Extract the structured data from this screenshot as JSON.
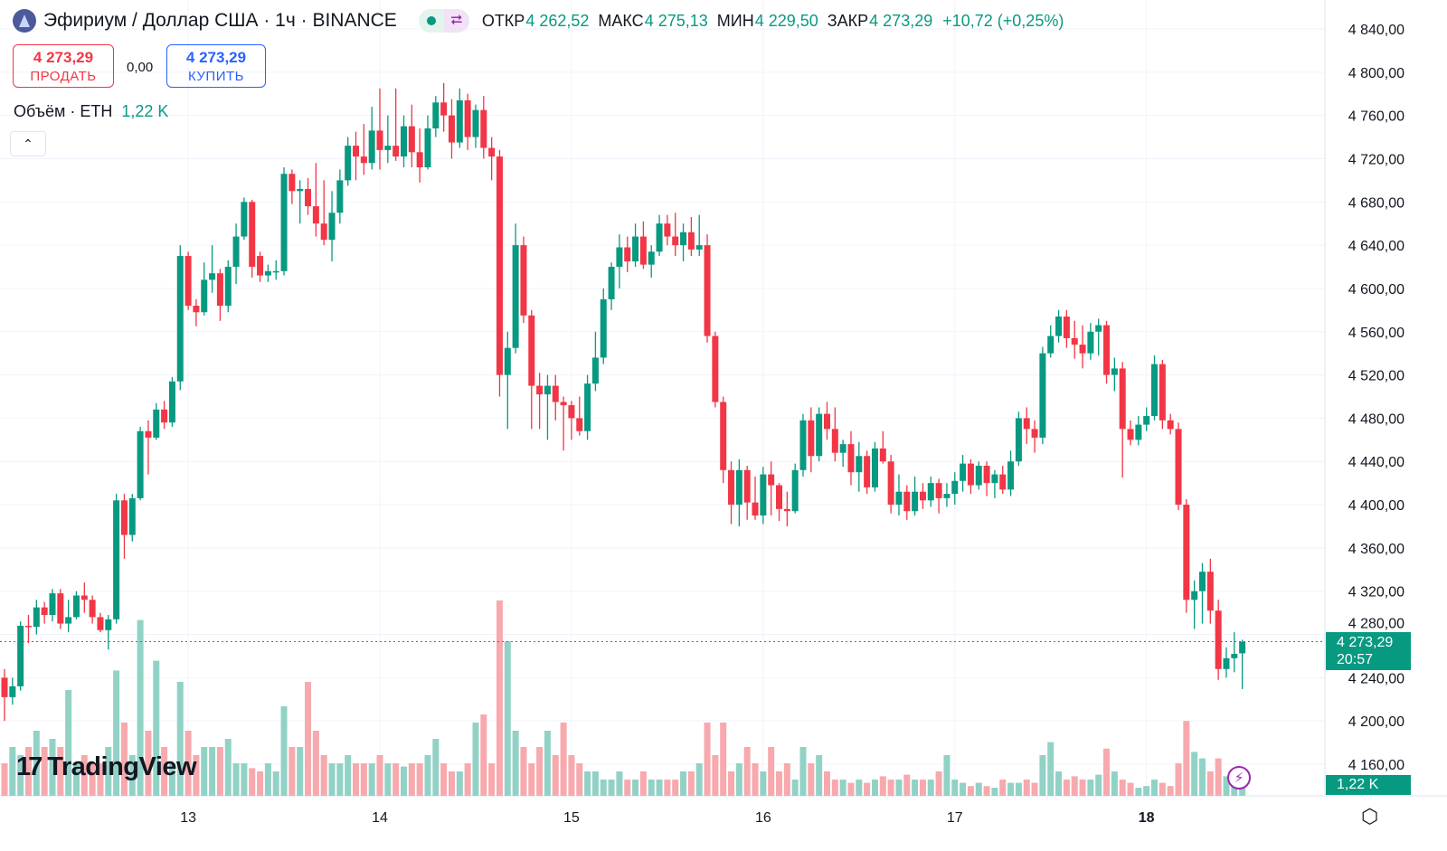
{
  "header": {
    "symbol_title": "Эфириум / Доллар США · 1ч · BINANCE",
    "ohlc": [
      {
        "label": "ОТКР",
        "value": "4 262,52"
      },
      {
        "label": "МАКС",
        "value": "4 275,13"
      },
      {
        "label": "МИН",
        "value": "4 229,50"
      },
      {
        "label": "ЗАКР",
        "value": "4 273,29"
      }
    ],
    "change": "+10,72 (+0,25%)",
    "status_icon": "market-open-dot",
    "share_icon": "share-nodes-icon"
  },
  "trade": {
    "sell_price": "4 273,29",
    "sell_label": "ПРОДАТЬ",
    "spread": "0,00",
    "buy_price": "4 273,29",
    "buy_label": "КУПИТЬ"
  },
  "volume_legend": {
    "label": "Объём · ETH",
    "value": "1,22 K"
  },
  "price_tag": {
    "price": "4 273,29",
    "countdown": "20:57"
  },
  "volume_tag": "1,22 K",
  "logo": "TradingView",
  "colors": {
    "up": "#089981",
    "down": "#f23645",
    "up_volume": "#92d2c6",
    "down_volume": "#f7a9ad",
    "buy": "#2962ff",
    "grid": "#f0f3fa"
  },
  "chart_data": {
    "type": "candlestick",
    "interval": "1h",
    "y_ticks": [
      "4 840,00",
      "4 800,00",
      "4 760,00",
      "4 720,00",
      "4 680,00",
      "4 640,00",
      "4 600,00",
      "4 560,00",
      "4 520,00",
      "4 480,00",
      "4 440,00",
      "4 400,00",
      "4 360,00",
      "4 320,00",
      "4 280,00",
      "4 240,00",
      "4 200,00",
      "4 160,00"
    ],
    "ylim": [
      4160,
      4840
    ],
    "x_ticks": [
      {
        "label": "13",
        "index": 23
      },
      {
        "label": "14",
        "index": 47
      },
      {
        "label": "15",
        "index": 71
      },
      {
        "label": "16",
        "index": 95
      },
      {
        "label": "17",
        "index": 119
      },
      {
        "label": "18",
        "index": 143,
        "bold": true
      }
    ],
    "last_price": 4273.29,
    "candles_ohlc": [
      [
        4240,
        4248,
        4200,
        4222
      ],
      [
        4222,
        4240,
        4215,
        4232
      ],
      [
        4232,
        4292,
        4228,
        4288
      ],
      [
        4288,
        4298,
        4272,
        4287
      ],
      [
        4287,
        4312,
        4280,
        4305
      ],
      [
        4305,
        4310,
        4290,
        4298
      ],
      [
        4298,
        4322,
        4292,
        4318
      ],
      [
        4318,
        4322,
        4285,
        4290
      ],
      [
        4290,
        4312,
        4282,
        4296
      ],
      [
        4296,
        4320,
        4294,
        4316
      ],
      [
        4316,
        4328,
        4300,
        4312
      ],
      [
        4312,
        4316,
        4290,
        4296
      ],
      [
        4296,
        4300,
        4282,
        4284
      ],
      [
        4284,
        4298,
        4266,
        4294
      ],
      [
        4294,
        4410,
        4290,
        4404
      ],
      [
        4404,
        4410,
        4350,
        4372
      ],
      [
        4372,
        4410,
        4366,
        4406
      ],
      [
        4406,
        4472,
        4404,
        4468
      ],
      [
        4468,
        4478,
        4428,
        4462
      ],
      [
        4462,
        4494,
        4460,
        4488
      ],
      [
        4488,
        4496,
        4470,
        4476
      ],
      [
        4476,
        4518,
        4472,
        4514
      ],
      [
        4514,
        4640,
        4506,
        4630
      ],
      [
        4630,
        4634,
        4580,
        4584
      ],
      [
        4584,
        4590,
        4565,
        4578
      ],
      [
        4578,
        4624,
        4575,
        4608
      ],
      [
        4608,
        4640,
        4596,
        4614
      ],
      [
        4614,
        4618,
        4570,
        4584
      ],
      [
        4584,
        4626,
        4578,
        4620
      ],
      [
        4620,
        4660,
        4604,
        4648
      ],
      [
        4648,
        4684,
        4645,
        4680
      ],
      [
        4680,
        4682,
        4610,
        4620
      ],
      [
        4630,
        4634,
        4606,
        4612
      ],
      [
        4612,
        4622,
        4606,
        4616
      ],
      [
        4616,
        4626,
        4608,
        4616
      ],
      [
        4616,
        4712,
        4612,
        4706
      ],
      [
        4706,
        4710,
        4678,
        4690
      ],
      [
        4690,
        4700,
        4660,
        4692
      ],
      [
        4692,
        4702,
        4668,
        4676
      ],
      [
        4676,
        4716,
        4648,
        4660
      ],
      [
        4660,
        4700,
        4640,
        4645
      ],
      [
        4645,
        4690,
        4625,
        4670
      ],
      [
        4670,
        4710,
        4660,
        4700
      ],
      [
        4700,
        4740,
        4695,
        4732
      ],
      [
        4732,
        4745,
        4700,
        4722
      ],
      [
        4722,
        4752,
        4705,
        4716
      ],
      [
        4716,
        4768,
        4710,
        4746
      ],
      [
        4746,
        4785,
        4710,
        4728
      ],
      [
        4728,
        4760,
        4716,
        4732
      ],
      [
        4732,
        4785,
        4718,
        4722
      ],
      [
        4722,
        4760,
        4712,
        4750
      ],
      [
        4750,
        4770,
        4712,
        4726
      ],
      [
        4726,
        4748,
        4698,
        4712
      ],
      [
        4712,
        4760,
        4710,
        4748
      ],
      [
        4748,
        4778,
        4740,
        4772
      ],
      [
        4772,
        4790,
        4745,
        4760
      ],
      [
        4760,
        4775,
        4720,
        4735
      ],
      [
        4735,
        4785,
        4730,
        4774
      ],
      [
        4774,
        4780,
        4728,
        4740
      ],
      [
        4740,
        4770,
        4730,
        4765
      ],
      [
        4765,
        4778,
        4720,
        4730
      ],
      [
        4730,
        4740,
        4700,
        4722
      ],
      [
        4722,
        4728,
        4500,
        4520
      ],
      [
        4520,
        4560,
        4470,
        4545
      ],
      [
        4545,
        4660,
        4540,
        4640
      ],
      [
        4640,
        4648,
        4568,
        4575
      ],
      [
        4575,
        4580,
        4470,
        4510
      ],
      [
        4510,
        4522,
        4470,
        4502
      ],
      [
        4502,
        4520,
        4460,
        4510
      ],
      [
        4510,
        4520,
        4478,
        4495
      ],
      [
        4495,
        4500,
        4450,
        4492
      ],
      [
        4492,
        4496,
        4460,
        4480
      ],
      [
        4480,
        4500,
        4464,
        4468
      ],
      [
        4468,
        4520,
        4460,
        4512
      ],
      [
        4512,
        4560,
        4505,
        4536
      ],
      [
        4536,
        4600,
        4530,
        4590
      ],
      [
        4590,
        4624,
        4580,
        4620
      ],
      [
        4620,
        4650,
        4600,
        4638
      ],
      [
        4638,
        4648,
        4615,
        4625
      ],
      [
        4625,
        4660,
        4620,
        4648
      ],
      [
        4648,
        4662,
        4618,
        4622
      ],
      [
        4622,
        4640,
        4610,
        4634
      ],
      [
        4634,
        4668,
        4630,
        4660
      ],
      [
        4660,
        4668,
        4640,
        4648
      ],
      [
        4648,
        4670,
        4630,
        4640
      ],
      [
        4640,
        4660,
        4625,
        4652
      ],
      [
        4652,
        4666,
        4630,
        4636
      ],
      [
        4636,
        4668,
        4630,
        4640
      ],
      [
        4640,
        4650,
        4550,
        4556
      ],
      [
        4556,
        4560,
        4490,
        4495
      ],
      [
        4495,
        4500,
        4420,
        4432
      ],
      [
        4432,
        4440,
        4382,
        4400
      ],
      [
        4400,
        4442,
        4380,
        4432
      ],
      [
        4432,
        4436,
        4386,
        4402
      ],
      [
        4402,
        4426,
        4386,
        4390
      ],
      [
        4390,
        4435,
        4382,
        4428
      ],
      [
        4428,
        4440,
        4390,
        4418
      ],
      [
        4418,
        4420,
        4385,
        4396
      ],
      [
        4396,
        4412,
        4380,
        4394
      ],
      [
        4394,
        4438,
        4392,
        4432
      ],
      [
        4432,
        4484,
        4426,
        4478
      ],
      [
        4478,
        4490,
        4430,
        4445
      ],
      [
        4445,
        4490,
        4440,
        4484
      ],
      [
        4484,
        4495,
        4460,
        4470
      ],
      [
        4470,
        4490,
        4440,
        4448
      ],
      [
        4448,
        4460,
        4435,
        4456
      ],
      [
        4456,
        4468,
        4418,
        4430
      ],
      [
        4430,
        4458,
        4412,
        4445
      ],
      [
        4445,
        4450,
        4410,
        4416
      ],
      [
        4416,
        4458,
        4412,
        4452
      ],
      [
        4452,
        4468,
        4438,
        4440
      ],
      [
        4440,
        4446,
        4392,
        4400
      ],
      [
        4400,
        4428,
        4390,
        4412
      ],
      [
        4412,
        4418,
        4386,
        4394
      ],
      [
        4394,
        4426,
        4390,
        4412
      ],
      [
        4412,
        4420,
        4396,
        4404
      ],
      [
        4404,
        4426,
        4398,
        4420
      ],
      [
        4420,
        4424,
        4392,
        4406
      ],
      [
        4406,
        4420,
        4398,
        4410
      ],
      [
        4410,
        4430,
        4400,
        4422
      ],
      [
        4422,
        4446,
        4412,
        4438
      ],
      [
        4438,
        4442,
        4410,
        4418
      ],
      [
        4418,
        4440,
        4414,
        4436
      ],
      [
        4436,
        4440,
        4408,
        4420
      ],
      [
        4420,
        4432,
        4406,
        4428
      ],
      [
        4428,
        4436,
        4410,
        4414
      ],
      [
        4414,
        4450,
        4408,
        4440
      ],
      [
        4440,
        4486,
        4436,
        4480
      ],
      [
        4480,
        4490,
        4456,
        4470
      ],
      [
        4470,
        4478,
        4448,
        4462
      ],
      [
        4462,
        4546,
        4456,
        4540
      ],
      [
        4540,
        4566,
        4536,
        4556
      ],
      [
        4556,
        4580,
        4550,
        4574
      ],
      [
        4574,
        4580,
        4545,
        4554
      ],
      [
        4554,
        4570,
        4535,
        4548
      ],
      [
        4548,
        4566,
        4526,
        4540
      ],
      [
        4540,
        4568,
        4534,
        4560
      ],
      [
        4560,
        4572,
        4538,
        4566
      ],
      [
        4566,
        4570,
        4512,
        4520
      ],
      [
        4520,
        4536,
        4505,
        4526
      ],
      [
        4526,
        4532,
        4425,
        4470
      ],
      [
        4470,
        4478,
        4455,
        4460
      ],
      [
        4460,
        4482,
        4455,
        4474
      ],
      [
        4474,
        4490,
        4468,
        4482
      ],
      [
        4482,
        4538,
        4478,
        4530
      ],
      [
        4530,
        4534,
        4470,
        4478
      ],
      [
        4478,
        4484,
        4465,
        4470
      ],
      [
        4470,
        4476,
        4395,
        4400
      ],
      [
        4400,
        4405,
        4300,
        4312
      ],
      [
        4312,
        4330,
        4285,
        4320
      ],
      [
        4320,
        4346,
        4290,
        4338
      ],
      [
        4338,
        4350,
        4290,
        4302
      ],
      [
        4302,
        4312,
        4238,
        4248
      ],
      [
        4248,
        4268,
        4240,
        4258
      ],
      [
        4258,
        4282,
        4245,
        4262
      ],
      [
        4262.52,
        4275.13,
        4229.5,
        4273.29
      ]
    ],
    "volume_k": [
      2,
      3,
      2.5,
      3,
      4,
      3,
      3.5,
      3,
      6.5,
      2,
      2.5,
      2,
      2,
      3,
      7.7,
      4.5,
      2.5,
      10.8,
      4,
      8.3,
      3,
      2,
      7,
      4,
      2.5,
      3,
      3,
      3,
      3.5,
      2,
      2,
      1.7,
      1.5,
      2,
      1.5,
      5.5,
      3,
      3,
      7,
      4,
      2.5,
      2,
      2,
      2.5,
      2,
      2,
      2,
      2.5,
      2,
      2,
      1.8,
      2,
      2,
      2.5,
      3.5,
      2,
      1.5,
      1.5,
      2,
      4.5,
      5,
      2,
      12,
      9.5,
      4,
      3,
      2,
      3,
      4,
      2.5,
      4.5,
      2.5,
      2,
      1.5,
      1.5,
      1,
      1,
      1.5,
      1,
      1,
      1.5,
      1,
      1,
      1,
      1,
      1.5,
      1.5,
      2,
      4.5,
      2.5,
      4.5,
      1.5,
      2,
      3,
      2,
      1.5,
      3,
      1.5,
      2,
      1,
      3,
      2,
      2.5,
      1.5,
      1,
      1,
      0.8,
      1,
      0.8,
      1,
      1.2,
      1,
      1,
      1.3,
      1,
      1,
      1,
      1.5,
      2.5,
      1,
      0.8,
      0.6,
      0.8,
      0.6,
      0.5,
      1,
      0.8,
      0.8,
      1,
      0.8,
      2.5,
      3.3,
      1.5,
      1,
      1.2,
      1,
      1,
      1.3,
      2.9,
      1.5,
      1,
      0.8,
      0.5,
      0.6,
      1,
      0.8,
      0.6,
      2,
      4.6,
      2.7,
      2.3,
      1.5,
      2.3,
      1.2,
      1.2,
      1.22
    ]
  }
}
